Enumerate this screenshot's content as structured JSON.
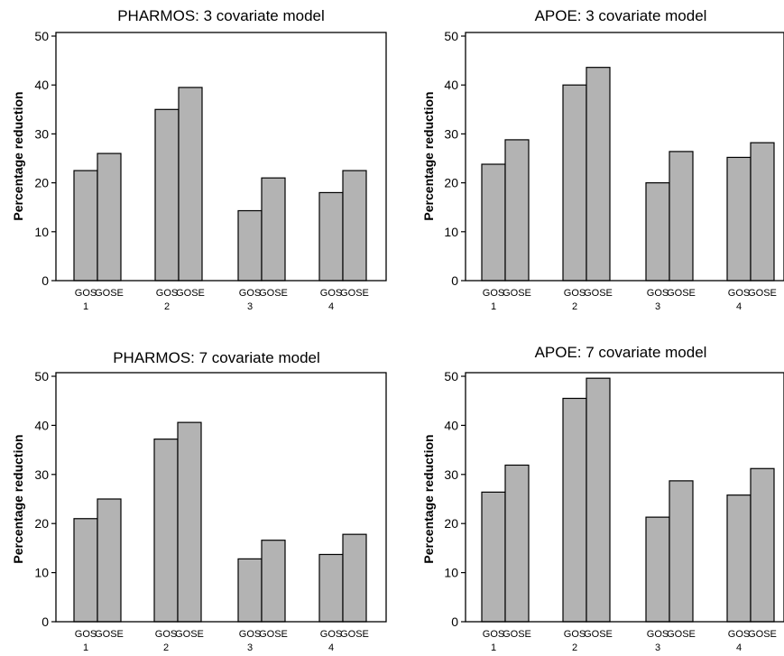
{
  "chart_data": [
    {
      "type": "bar",
      "title": "PHARMOS: 3 covariate model",
      "ylabel": "Percentage reduction",
      "ylim": [
        0,
        50
      ],
      "yticks": [
        "0",
        "10",
        "20",
        "30",
        "40",
        "50"
      ],
      "group_labels": [
        "1",
        "2",
        "3",
        "4"
      ],
      "bar_labels": [
        "GOS",
        "GOSE"
      ],
      "series": [
        {
          "values": [
            22.5,
            35.0,
            14.3,
            18.0
          ]
        },
        {
          "values": [
            26.0,
            39.5,
            21.0,
            22.5
          ]
        }
      ]
    },
    {
      "type": "bar",
      "title": "APOE: 3 covariate model",
      "ylabel": "Percentage reduction",
      "ylim": [
        0,
        50
      ],
      "yticks": [
        "0",
        "10",
        "20",
        "30",
        "40",
        "50"
      ],
      "group_labels": [
        "1",
        "2",
        "3",
        "4"
      ],
      "bar_labels": [
        "GOS",
        "GOSE"
      ],
      "series": [
        {
          "values": [
            23.8,
            40.0,
            20.0,
            25.2
          ]
        },
        {
          "values": [
            28.8,
            43.6,
            26.4,
            28.2
          ]
        }
      ]
    },
    {
      "type": "bar",
      "title": "PHARMOS: 7 covariate model",
      "ylabel": "Percentage reduction",
      "ylim": [
        0,
        50
      ],
      "yticks": [
        "0",
        "10",
        "20",
        "30",
        "40",
        "50"
      ],
      "group_labels": [
        "1",
        "2",
        "3",
        "4"
      ],
      "bar_labels": [
        "GOS",
        "GOSE"
      ],
      "series": [
        {
          "values": [
            21.0,
            37.2,
            12.8,
            13.7
          ]
        },
        {
          "values": [
            25.0,
            40.6,
            16.6,
            17.8
          ]
        }
      ]
    },
    {
      "type": "bar",
      "title": "APOE: 7 covariate model",
      "ylabel": "Percentage reduction",
      "ylim": [
        0,
        50
      ],
      "yticks": [
        "0",
        "10",
        "20",
        "30",
        "40",
        "50"
      ],
      "group_labels": [
        "1",
        "2",
        "3",
        "4"
      ],
      "bar_labels": [
        "GOS",
        "GOSE"
      ],
      "series": [
        {
          "values": [
            26.4,
            45.5,
            21.3,
            25.8
          ]
        },
        {
          "values": [
            31.9,
            49.6,
            28.7,
            31.2
          ]
        }
      ]
    }
  ]
}
